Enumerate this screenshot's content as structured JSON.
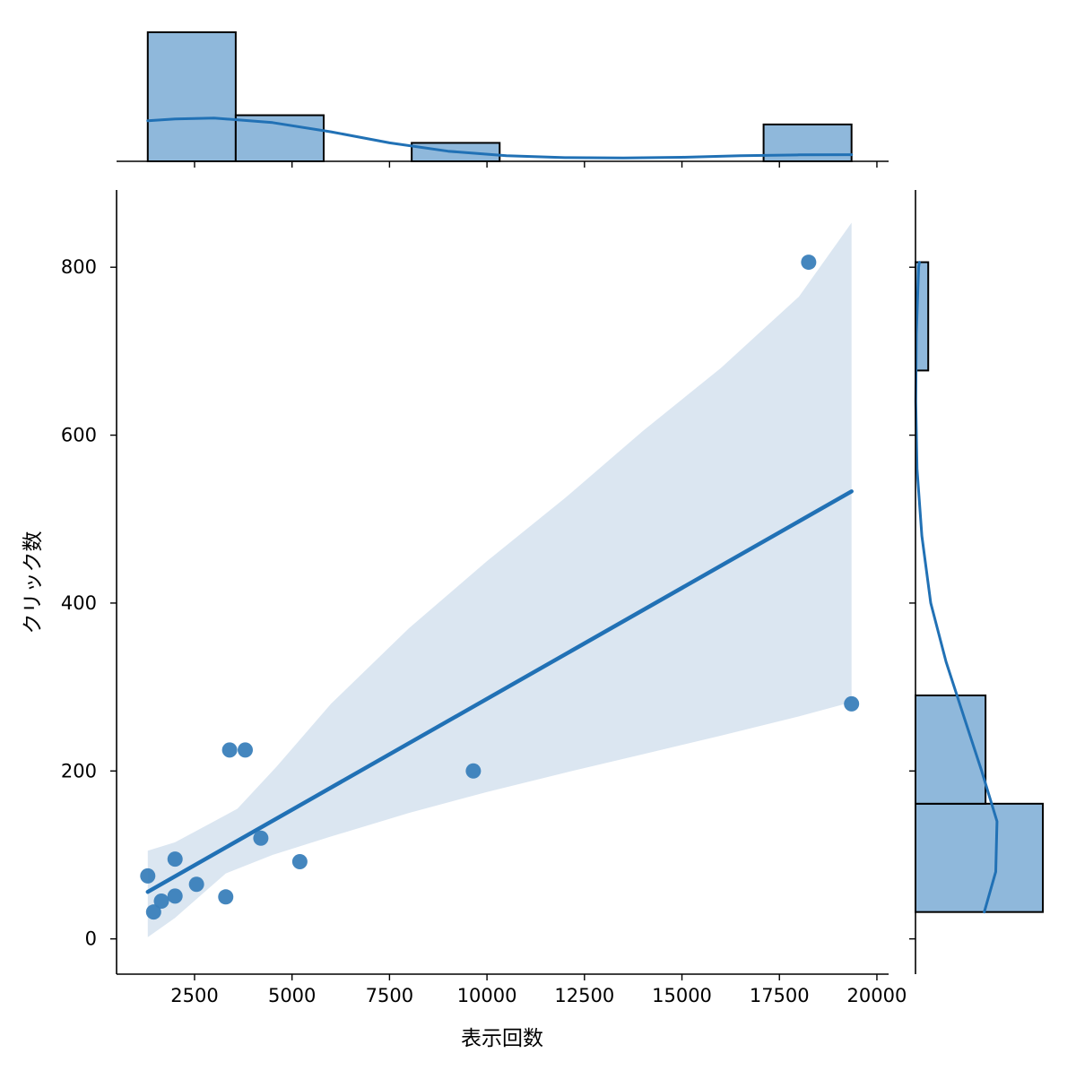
{
  "chart_data": {
    "type": "scatter",
    "kind": "jointplot-regression",
    "xlabel": "表示回数",
    "ylabel": "クリック数",
    "xlim": [
      500,
      20300
    ],
    "ylim": [
      -42,
      892
    ],
    "x_ticks": [
      2500,
      5000,
      7500,
      10000,
      12500,
      15000,
      17500,
      20000
    ],
    "y_ticks": [
      0,
      200,
      400,
      600,
      800
    ],
    "grid": false,
    "legend": false,
    "colors": {
      "point": "#3a80ba",
      "line": "#2171b5",
      "band": "#dbe6f1",
      "hist_fill": "#8fb8db",
      "hist_edge": "#000000",
      "kde": "#2171b5"
    },
    "points": [
      {
        "x": 1300,
        "y": 75
      },
      {
        "x": 1450,
        "y": 32
      },
      {
        "x": 1650,
        "y": 45
      },
      {
        "x": 2000,
        "y": 51
      },
      {
        "x": 2000,
        "y": 95
      },
      {
        "x": 2550,
        "y": 65
      },
      {
        "x": 3300,
        "y": 50
      },
      {
        "x": 3400,
        "y": 225
      },
      {
        "x": 3800,
        "y": 225
      },
      {
        "x": 4200,
        "y": 120
      },
      {
        "x": 5200,
        "y": 92
      },
      {
        "x": 9650,
        "y": 200
      },
      {
        "x": 18250,
        "y": 806
      },
      {
        "x": 19350,
        "y": 280
      }
    ],
    "regression": {
      "x": [
        1300,
        19350
      ],
      "y": [
        56,
        533
      ]
    },
    "band": {
      "upper": [
        [
          1300,
          105
        ],
        [
          2000,
          115
        ],
        [
          2600,
          130
        ],
        [
          3600,
          155
        ],
        [
          4600,
          205
        ],
        [
          6000,
          280
        ],
        [
          8000,
          370
        ],
        [
          10000,
          450
        ],
        [
          12000,
          525
        ],
        [
          14000,
          605
        ],
        [
          16000,
          680
        ],
        [
          18000,
          765
        ],
        [
          19350,
          853
        ]
      ],
      "lower": [
        [
          1300,
          2
        ],
        [
          2000,
          25
        ],
        [
          3300,
          78
        ],
        [
          4500,
          100
        ],
        [
          6000,
          122
        ],
        [
          8000,
          150
        ],
        [
          10000,
          175
        ],
        [
          12000,
          198
        ],
        [
          14000,
          220
        ],
        [
          16000,
          242
        ],
        [
          18000,
          265
        ],
        [
          19350,
          282
        ]
      ]
    },
    "x_hist": {
      "bin_edges": [
        1300,
        3556,
        5812,
        8069,
        10325,
        12581,
        14837,
        17094,
        19350
      ],
      "counts": [
        7,
        2.5,
        0,
        1,
        0,
        0,
        0,
        2
      ]
    },
    "x_kde": [
      [
        1300,
        2.2
      ],
      [
        2000,
        2.3
      ],
      [
        3000,
        2.35
      ],
      [
        4500,
        2.1
      ],
      [
        6000,
        1.6
      ],
      [
        7500,
        1.0
      ],
      [
        9000,
        0.55
      ],
      [
        10500,
        0.3
      ],
      [
        12000,
        0.2
      ],
      [
        13500,
        0.18
      ],
      [
        15000,
        0.22
      ],
      [
        16500,
        0.3
      ],
      [
        18000,
        0.35
      ],
      [
        19350,
        0.36
      ]
    ],
    "y_hist": {
      "bin_edges": [
        32,
        161,
        290,
        419,
        548,
        677,
        806
      ],
      "counts": [
        10,
        5.5,
        0,
        0,
        0,
        1
      ]
    },
    "y_kde": [
      [
        32,
        5.4
      ],
      [
        80,
        6.3
      ],
      [
        140,
        6.4
      ],
      [
        200,
        5.2
      ],
      [
        260,
        3.9
      ],
      [
        330,
        2.4
      ],
      [
        400,
        1.2
      ],
      [
        480,
        0.5
      ],
      [
        560,
        0.12
      ],
      [
        640,
        0.02
      ],
      [
        720,
        0.06
      ],
      [
        800,
        0.25
      ],
      [
        806,
        0.3
      ]
    ]
  }
}
